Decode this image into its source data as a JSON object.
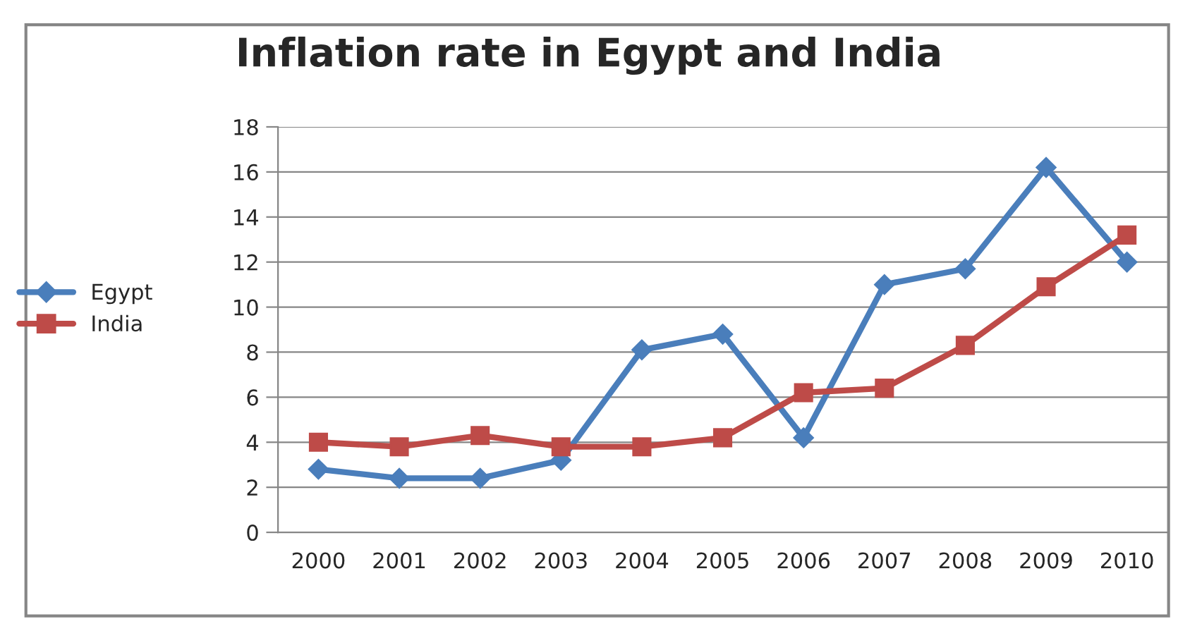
{
  "chart_data": {
    "type": "line",
    "title": "Inflation rate in Egypt and India",
    "categories": [
      "2000",
      "2001",
      "2002",
      "2003",
      "2004",
      "2005",
      "2006",
      "2007",
      "2008",
      "2009",
      "2010"
    ],
    "series": [
      {
        "name": "Egypt",
        "color": "#4a7ebb",
        "marker": "diamond",
        "values": [
          2.8,
          2.4,
          2.4,
          3.2,
          8.1,
          8.8,
          4.2,
          11.0,
          11.7,
          16.2,
          12.0
        ]
      },
      {
        "name": "India",
        "color": "#be4b48",
        "marker": "square",
        "values": [
          4.0,
          3.8,
          4.3,
          3.8,
          3.8,
          4.2,
          6.2,
          6.4,
          8.3,
          10.9,
          13.2
        ]
      }
    ],
    "ylim": [
      0,
      18
    ],
    "yticks": [
      0,
      2,
      4,
      6,
      8,
      10,
      12,
      14,
      16,
      18
    ],
    "grid": "y",
    "legend": "left",
    "line_style": "solid"
  }
}
